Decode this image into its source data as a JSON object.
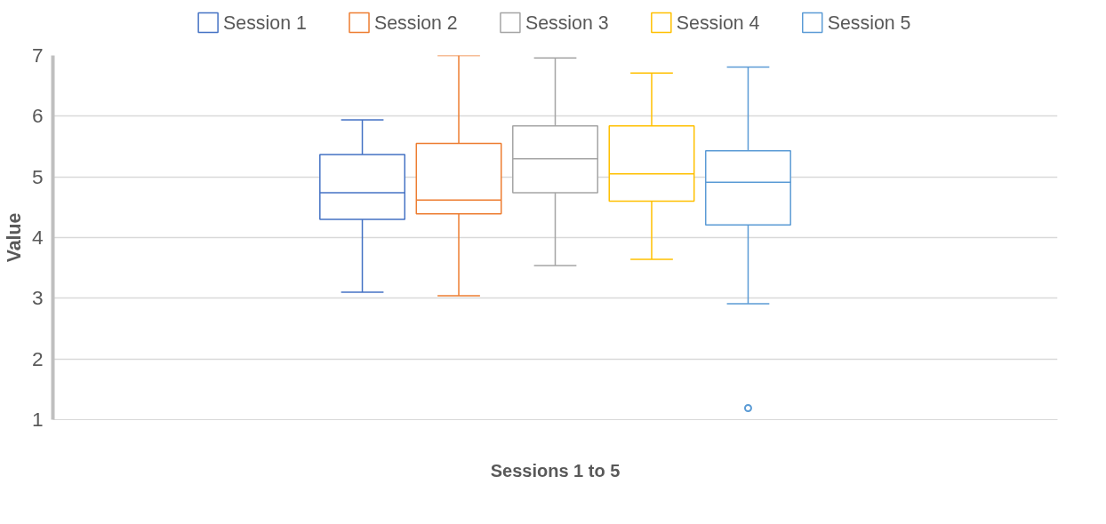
{
  "chart_data": {
    "type": "box",
    "xlabel": "Sessions 1 to 5",
    "ylabel": "Value",
    "categories": [
      null
    ],
    "ylim": [
      1,
      7
    ],
    "yticks": [
      1,
      2,
      3,
      4,
      5,
      6,
      7
    ],
    "grid": "y",
    "legend": "top",
    "series": [
      {
        "name": "Session 1",
        "color": "#4472c4",
        "boxes": [
          {
            "low": 3.1,
            "q1": 4.3,
            "median": 4.74,
            "q3": 5.37,
            "high": 5.94
          }
        ]
      },
      {
        "name": "Session 2",
        "color": "#ed7d31",
        "boxes": [
          {
            "low": 3.04,
            "q1": 4.39,
            "median": 4.62,
            "q3": 5.55,
            "high": 7.0
          }
        ]
      },
      {
        "name": "Session 3",
        "color": "#a5a5a5",
        "boxes": [
          {
            "low": 3.54,
            "q1": 4.74,
            "median": 5.3,
            "q3": 5.84,
            "high": 6.96
          }
        ]
      },
      {
        "name": "Session 4",
        "color": "#ffc000",
        "boxes": [
          {
            "low": 3.64,
            "q1": 4.6,
            "median": 5.05,
            "q3": 5.84,
            "high": 6.71
          }
        ]
      },
      {
        "name": "Session 5",
        "color": "#5b9bd5",
        "boxes": [
          {
            "low": 2.91,
            "q1": 4.21,
            "median": 4.91,
            "q3": 5.43,
            "high": 6.81,
            "outliers": [
              1.19
            ]
          }
        ]
      }
    ]
  }
}
